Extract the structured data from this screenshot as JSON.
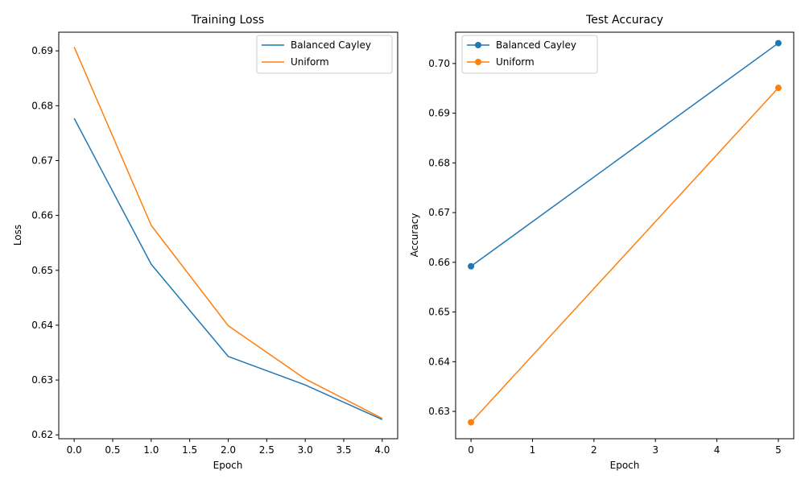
{
  "chart_data": [
    {
      "type": "line",
      "title": "Training Loss",
      "xlabel": "Epoch",
      "ylabel": "Loss",
      "x": [
        0,
        1,
        2,
        3,
        4
      ],
      "xlim": [
        -0.2,
        4.2
      ],
      "ylim": [
        0.6193,
        0.6934
      ],
      "xticks": [
        "0.0",
        "0.5",
        "1.0",
        "1.5",
        "2.0",
        "2.5",
        "3.0",
        "3.5",
        "4.0"
      ],
      "yticks": [
        "0.62",
        "0.63",
        "0.64",
        "0.65",
        "0.66",
        "0.67",
        "0.68",
        "0.69"
      ],
      "markers": false,
      "legend_position": "upper right",
      "grid": false,
      "series": [
        {
          "name": "Balanced Cayley",
          "color": "#1f77b4",
          "values": [
            0.6777,
            0.6511,
            0.6343,
            0.6291,
            0.6228
          ]
        },
        {
          "name": "Uniform",
          "color": "#ff7f0e",
          "values": [
            0.6907,
            0.6582,
            0.6399,
            0.6302,
            0.623
          ]
        }
      ]
    },
    {
      "type": "line",
      "title": "Test Accuracy",
      "xlabel": "Epoch",
      "ylabel": "Accuracy",
      "x": [
        0,
        5
      ],
      "xlim": [
        -0.25,
        5.25
      ],
      "ylim": [
        0.6245,
        0.7063
      ],
      "xticks": [
        "0",
        "1",
        "2",
        "3",
        "4",
        "5"
      ],
      "yticks": [
        "0.63",
        "0.64",
        "0.65",
        "0.66",
        "0.67",
        "0.68",
        "0.69",
        "0.70"
      ],
      "markers": true,
      "legend_position": "upper left",
      "grid": false,
      "series": [
        {
          "name": "Balanced Cayley",
          "color": "#1f77b4",
          "values": [
            0.6592,
            0.7041
          ]
        },
        {
          "name": "Uniform",
          "color": "#ff7f0e",
          "values": [
            0.6278,
            0.6951
          ]
        }
      ]
    }
  ]
}
